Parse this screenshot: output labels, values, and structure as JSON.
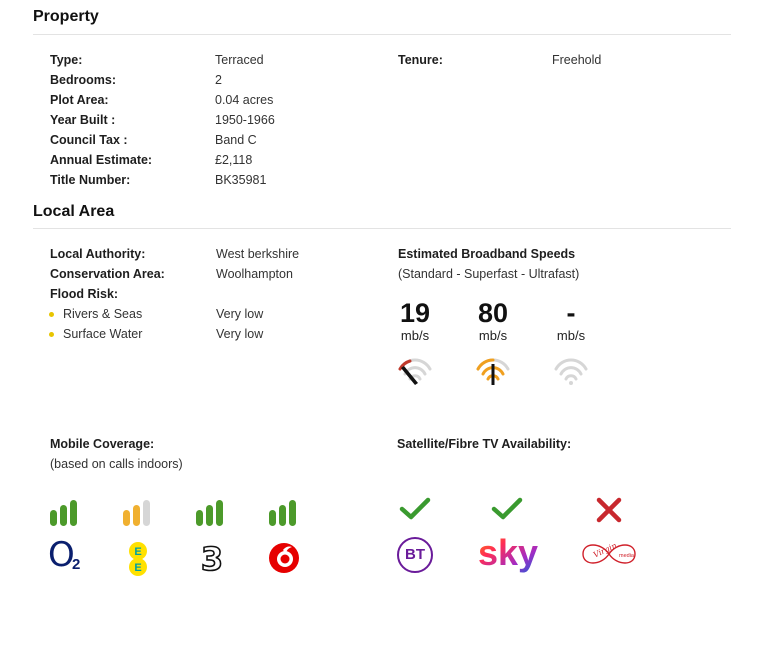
{
  "property": {
    "title": "Property",
    "left_rows": [
      {
        "label": "Type:",
        "value": "Terraced"
      },
      {
        "label": "Bedrooms:",
        "value": "2"
      },
      {
        "label": "Plot Area:",
        "value": "0.04 acres"
      },
      {
        "label": "Year Built :",
        "value": "1950-1966"
      },
      {
        "label": "Council Tax :",
        "value": "Band C"
      },
      {
        "label": "Annual Estimate:",
        "value": "£2,118"
      },
      {
        "label": "Title Number:",
        "value": "BK35981"
      }
    ],
    "tenure": {
      "label": "Tenure:",
      "value": "Freehold"
    }
  },
  "local_area": {
    "title": "Local Area",
    "local_authority": {
      "label": "Local Authority:",
      "value": "West berkshire"
    },
    "conservation_area": {
      "label": "Conservation Area:",
      "value": "Woolhampton"
    },
    "flood_risk": {
      "label": "Flood Risk:",
      "items": [
        {
          "label": "Rivers & Seas",
          "value": "Very low"
        },
        {
          "label": "Surface Water",
          "value": "Very low"
        }
      ]
    },
    "broadband": {
      "title": "Estimated Broadband Speeds",
      "subtitle": "(Standard - Superfast - Ultrafast)",
      "speeds": [
        {
          "value": "19",
          "unit": "mb/s",
          "gauge_color": "#c0392b"
        },
        {
          "value": "80",
          "unit": "mb/s",
          "gauge_color": "#f0a020"
        },
        {
          "value": "-",
          "unit": "mb/s",
          "gauge_color": "#cccccc"
        }
      ]
    }
  },
  "mobile": {
    "title": "Mobile Coverage:",
    "subtitle": "(based on calls indoors)",
    "providers": [
      {
        "name": "O2",
        "logo_text": "O2",
        "bars_filled": 3,
        "bar_color": "#4c9a2a"
      },
      {
        "name": "EE",
        "logo_text": "EE",
        "bars_filled": 2,
        "bar_color": "#f0b030"
      },
      {
        "name": "Three",
        "logo_text": "3",
        "bars_filled": 3,
        "bar_color": "#4c9a2a"
      },
      {
        "name": "Vodafone",
        "logo_text": "",
        "bars_filled": 3,
        "bar_color": "#4c9a2a"
      }
    ]
  },
  "tv": {
    "title": "Satellite/Fibre TV Availability:",
    "providers": [
      {
        "name": "BT",
        "logo_text": "BT",
        "available": true
      },
      {
        "name": "Sky",
        "logo_text": "sky",
        "available": true
      },
      {
        "name": "Virgin Media",
        "logo_text": "Virgin media",
        "available": false
      }
    ]
  },
  "colors": {
    "check": "#3a9a2f",
    "cross": "#c8282e",
    "o2": "#0a1f6e",
    "bt": "#6a1b9a",
    "vodafone": "#e60000",
    "ee_yellow": "#ffe100",
    "ee_teal": "#00a0a0",
    "virgin": "#d0202a"
  }
}
